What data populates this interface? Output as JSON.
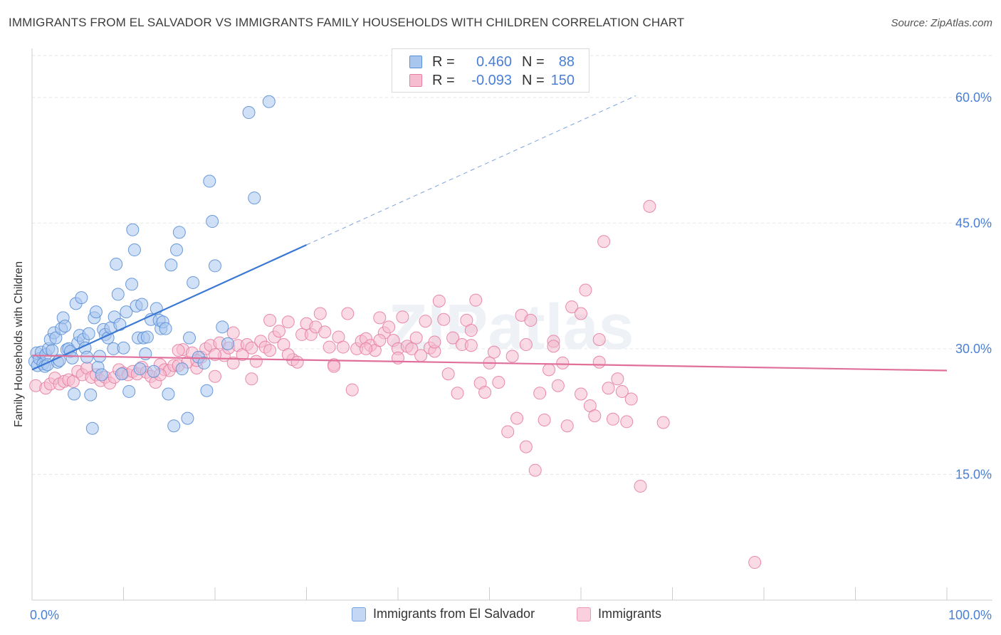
{
  "title": "IMMIGRANTS FROM EL SALVADOR VS IMMIGRANTS FAMILY HOUSEHOLDS WITH CHILDREN CORRELATION CHART",
  "source": "Source: ZipAtlas.com",
  "watermark": "ZIPatlas",
  "legend": {
    "rows": [
      {
        "r_label": "R =",
        "r_value": "0.460",
        "n_label": "N =",
        "n_value": "88",
        "color": "#a9c6ef",
        "border": "#5b8fd6"
      },
      {
        "r_label": "R =",
        "r_value": "-0.093",
        "n_label": "N =",
        "n_value": "150",
        "color": "#f6bcd0",
        "border": "#e57ea2"
      }
    ]
  },
  "bottom_legend": [
    "Immigrants from El Salvador",
    "Immigrants"
  ],
  "colors": {
    "blue": "#5b8fd6",
    "blue_fill": "#a9c6ef",
    "pink": "#e57ea2",
    "pink_fill": "#f6bcd0",
    "axis_text": "#4a7fd4",
    "grid": "#e6e6e6"
  },
  "chart_data": {
    "type": "scatter",
    "ylabel": "Family Households with Children",
    "xlim": [
      0,
      100
    ],
    "ylim": [
      0,
      65
    ],
    "x_ticks": [
      {
        "value": 0,
        "label": "0.0%"
      },
      {
        "value": 100,
        "label": "100.0%"
      }
    ],
    "y_ticks": [
      {
        "value": 15,
        "label": "15.0%"
      },
      {
        "value": 30,
        "label": "30.0%"
      },
      {
        "value": 45,
        "label": "45.0%"
      },
      {
        "value": 60,
        "label": "60.0%"
      }
    ],
    "series": [
      {
        "name": "Immigrants from El Salvador",
        "trend": {
          "x0": 0,
          "y0": 27.5,
          "x1": 30,
          "y1": 42.4,
          "dash_to_x": 66,
          "dash_to_y": 60.2
        },
        "points": [
          [
            0.3,
            28.5
          ],
          [
            0.5,
            29.5
          ],
          [
            0.6,
            28.0
          ],
          [
            0.8,
            28.8
          ],
          [
            1.0,
            29.6
          ],
          [
            1.2,
            28.2
          ],
          [
            1.4,
            27.9
          ],
          [
            1.5,
            29.3
          ],
          [
            1.7,
            28.1
          ],
          [
            1.8,
            30.0
          ],
          [
            2.0,
            31.1
          ],
          [
            2.2,
            29.8
          ],
          [
            2.4,
            31.9
          ],
          [
            2.6,
            31.3
          ],
          [
            2.8,
            28.4
          ],
          [
            3.0,
            28.6
          ],
          [
            3.2,
            32.4
          ],
          [
            3.4,
            33.7
          ],
          [
            3.6,
            32.7
          ],
          [
            3.8,
            29.9
          ],
          [
            4.0,
            30.0
          ],
          [
            4.2,
            29.7
          ],
          [
            4.4,
            28.9
          ],
          [
            4.6,
            24.6
          ],
          [
            4.8,
            35.4
          ],
          [
            5.0,
            30.7
          ],
          [
            5.2,
            31.6
          ],
          [
            5.4,
            36.1
          ],
          [
            5.6,
            31.1
          ],
          [
            5.8,
            30.1
          ],
          [
            6.0,
            29.0
          ],
          [
            6.2,
            31.8
          ],
          [
            6.4,
            24.5
          ],
          [
            6.6,
            20.5
          ],
          [
            6.8,
            33.7
          ],
          [
            7.0,
            34.4
          ],
          [
            7.2,
            27.8
          ],
          [
            7.4,
            29.1
          ],
          [
            7.6,
            26.9
          ],
          [
            7.8,
            32.3
          ],
          [
            8.0,
            31.7
          ],
          [
            8.3,
            31.3
          ],
          [
            8.6,
            32.5
          ],
          [
            8.9,
            30.0
          ],
          [
            9.0,
            33.8
          ],
          [
            9.2,
            40.1
          ],
          [
            9.4,
            36.5
          ],
          [
            9.6,
            32.9
          ],
          [
            9.8,
            27.0
          ],
          [
            10.0,
            30.1
          ],
          [
            10.3,
            34.4
          ],
          [
            10.6,
            24.9
          ],
          [
            10.9,
            37.7
          ],
          [
            11.0,
            44.2
          ],
          [
            11.2,
            41.8
          ],
          [
            11.4,
            35.1
          ],
          [
            11.6,
            31.3
          ],
          [
            11.8,
            27.6
          ],
          [
            12.0,
            35.3
          ],
          [
            12.2,
            31.3
          ],
          [
            12.4,
            29.4
          ],
          [
            12.6,
            31.4
          ],
          [
            13.0,
            33.5
          ],
          [
            13.3,
            27.3
          ],
          [
            13.6,
            34.8
          ],
          [
            13.9,
            33.4
          ],
          [
            14.1,
            32.4
          ],
          [
            14.3,
            33.2
          ],
          [
            14.6,
            32.4
          ],
          [
            14.9,
            24.6
          ],
          [
            15.2,
            40.0
          ],
          [
            15.5,
            20.8
          ],
          [
            15.8,
            41.8
          ],
          [
            16.1,
            43.9
          ],
          [
            16.4,
            27.6
          ],
          [
            17.0,
            21.7
          ],
          [
            17.2,
            31.3
          ],
          [
            17.6,
            37.9
          ],
          [
            18.2,
            29.0
          ],
          [
            18.8,
            28.3
          ],
          [
            19.1,
            25.0
          ],
          [
            19.4,
            50.0
          ],
          [
            19.7,
            45.2
          ],
          [
            20.0,
            39.9
          ],
          [
            20.8,
            32.6
          ],
          [
            21.4,
            30.6
          ],
          [
            23.7,
            58.2
          ],
          [
            24.3,
            48.0
          ],
          [
            25.9,
            59.5
          ]
        ]
      },
      {
        "name": "Immigrants",
        "trend": {
          "x0": 0,
          "y0": 29.2,
          "x1": 100,
          "y1": 27.4
        },
        "points": [
          [
            0.4,
            25.6
          ],
          [
            1.5,
            25.3
          ],
          [
            2.0,
            25.8
          ],
          [
            2.5,
            26.5
          ],
          [
            3.0,
            25.8
          ],
          [
            3.5,
            26.1
          ],
          [
            4.0,
            26.3
          ],
          [
            4.5,
            26.1
          ],
          [
            5.0,
            27.3
          ],
          [
            5.5,
            26.9
          ],
          [
            6.0,
            27.7
          ],
          [
            6.5,
            26.6
          ],
          [
            7.0,
            26.9
          ],
          [
            7.5,
            26.2
          ],
          [
            8.0,
            26.6
          ],
          [
            8.5,
            25.9
          ],
          [
            9.0,
            26.6
          ],
          [
            9.5,
            27.5
          ],
          [
            10.0,
            27.1
          ],
          [
            10.5,
            26.9
          ],
          [
            11.0,
            27.3
          ],
          [
            11.5,
            27.0
          ],
          [
            12.0,
            27.8
          ],
          [
            12.5,
            27.2
          ],
          [
            13.0,
            26.7
          ],
          [
            13.5,
            26.0
          ],
          [
            14.0,
            28.1
          ],
          [
            14.5,
            27.5
          ],
          [
            15.0,
            27.4
          ],
          [
            15.5,
            28.0
          ],
          [
            16.0,
            28.0
          ],
          [
            16.5,
            29.9
          ],
          [
            17.0,
            28.4
          ],
          [
            17.5,
            29.5
          ],
          [
            18.0,
            27.7
          ],
          [
            18.5,
            29.0
          ],
          [
            19.0,
            30.0
          ],
          [
            19.5,
            30.4
          ],
          [
            20.0,
            26.7
          ],
          [
            20.5,
            30.7
          ],
          [
            21.0,
            29.2
          ],
          [
            21.5,
            30.1
          ],
          [
            22.0,
            31.9
          ],
          [
            22.5,
            30.4
          ],
          [
            23.0,
            29.3
          ],
          [
            23.5,
            30.5
          ],
          [
            24.0,
            30.1
          ],
          [
            24.5,
            28.5
          ],
          [
            25.0,
            30.9
          ],
          [
            25.5,
            30.2
          ],
          [
            26.0,
            33.4
          ],
          [
            26.5,
            31.4
          ],
          [
            27.0,
            32.1
          ],
          [
            27.5,
            30.5
          ],
          [
            28.0,
            33.2
          ],
          [
            28.5,
            28.7
          ],
          [
            29.0,
            28.4
          ],
          [
            29.5,
            31.7
          ],
          [
            30.0,
            33.0
          ],
          [
            30.5,
            31.7
          ],
          [
            31.0,
            32.6
          ],
          [
            31.5,
            34.2
          ],
          [
            32.0,
            32.0
          ],
          [
            32.5,
            30.2
          ],
          [
            33.0,
            28.1
          ],
          [
            33.5,
            31.4
          ],
          [
            34.0,
            30.2
          ],
          [
            34.5,
            34.2
          ],
          [
            35.0,
            25.1
          ],
          [
            35.5,
            30.0
          ],
          [
            36.0,
            30.9
          ],
          [
            36.5,
            31.2
          ],
          [
            37.0,
            30.4
          ],
          [
            37.5,
            29.8
          ],
          [
            38.0,
            33.7
          ],
          [
            38.5,
            31.9
          ],
          [
            39.0,
            32.6
          ],
          [
            39.5,
            31.0
          ],
          [
            40.0,
            30.0
          ],
          [
            40.5,
            33.8
          ],
          [
            41.0,
            30.3
          ],
          [
            41.5,
            30.0
          ],
          [
            42.0,
            31.3
          ],
          [
            42.5,
            29.2
          ],
          [
            43.0,
            33.3
          ],
          [
            43.5,
            30.1
          ],
          [
            44.0,
            29.7
          ],
          [
            44.5,
            35.7
          ],
          [
            45.0,
            33.5
          ],
          [
            45.5,
            27.0
          ],
          [
            46.0,
            31.3
          ],
          [
            46.5,
            24.7
          ],
          [
            47.0,
            30.5
          ],
          [
            47.5,
            33.4
          ],
          [
            48.0,
            32.2
          ],
          [
            48.5,
            35.8
          ],
          [
            49.0,
            25.9
          ],
          [
            49.5,
            24.8
          ],
          [
            50.0,
            28.3
          ],
          [
            50.5,
            29.6
          ],
          [
            51.0,
            26.0
          ],
          [
            52.0,
            20.1
          ],
          [
            52.5,
            29.1
          ],
          [
            53.0,
            21.7
          ],
          [
            53.5,
            34.0
          ],
          [
            54.0,
            18.3
          ],
          [
            54.5,
            33.4
          ],
          [
            55.0,
            15.5
          ],
          [
            55.5,
            24.7
          ],
          [
            56.0,
            21.5
          ],
          [
            56.5,
            27.5
          ],
          [
            57.0,
            30.9
          ],
          [
            57.5,
            25.6
          ],
          [
            58.0,
            28.3
          ],
          [
            58.5,
            20.8
          ],
          [
            59.0,
            35.0
          ],
          [
            60.0,
            34.2
          ],
          [
            60.5,
            37.0
          ],
          [
            61.0,
            23.2
          ],
          [
            61.5,
            22.0
          ],
          [
            62.0,
            31.1
          ],
          [
            62.5,
            42.8
          ],
          [
            63.0,
            25.3
          ],
          [
            63.5,
            21.6
          ],
          [
            64.0,
            26.4
          ],
          [
            64.5,
            24.9
          ],
          [
            65.0,
            21.3
          ],
          [
            65.5,
            24.0
          ],
          [
            66.5,
            13.6
          ],
          [
            67.5,
            47.0
          ],
          [
            69.0,
            21.2
          ],
          [
            79.0,
            4.5
          ],
          [
            60.0,
            24.6
          ],
          [
            62.0,
            28.4
          ],
          [
            57.0,
            30.3
          ],
          [
            54.0,
            30.5
          ],
          [
            48.0,
            30.4
          ],
          [
            44.0,
            30.8
          ],
          [
            40.0,
            28.9
          ],
          [
            38.0,
            31.0
          ],
          [
            36.5,
            30.0
          ],
          [
            33.0,
            27.9
          ],
          [
            28.0,
            29.3
          ],
          [
            26.0,
            29.8
          ],
          [
            24.0,
            26.4
          ],
          [
            22.0,
            28.3
          ],
          [
            20.0,
            29.3
          ],
          [
            18.0,
            28.6
          ],
          [
            16.0,
            29.8
          ],
          [
            14.0,
            26.9
          ]
        ]
      }
    ]
  }
}
